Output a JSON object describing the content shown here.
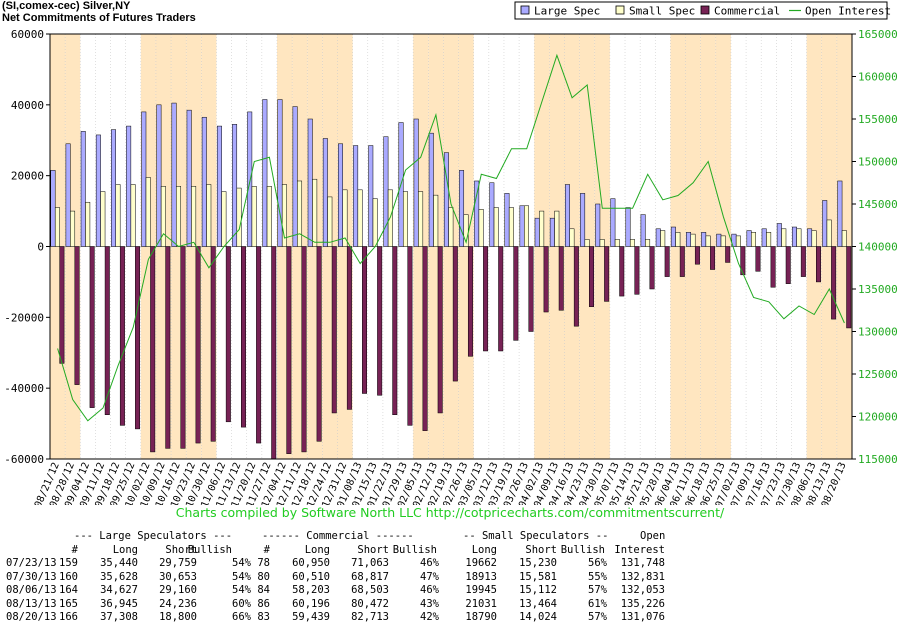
{
  "header": {
    "line1": "(SI,comex-cec) Silver,NY",
    "line2": "Net Commitments of Futures Traders"
  },
  "chart_data": {
    "type": "bar",
    "title": "",
    "colors": {
      "large_spec": "#aaaaff",
      "small_spec": "#ffffcc",
      "commercial": "#772255",
      "open_interest": "#22aa22",
      "band": "#ffe6c0"
    },
    "left_axis": {
      "min": -60000,
      "max": 60000,
      "ticks": [
        "60000",
        "40000",
        "20000",
        "0",
        "-20000",
        "-40000",
        "-60000"
      ]
    },
    "right_axis": {
      "min": 115000,
      "max": 165000,
      "ticks": [
        "165000",
        "160000",
        "155000",
        "150000",
        "145000",
        "140000",
        "135000",
        "130000",
        "125000",
        "120000",
        "115000"
      ]
    },
    "dates": [
      "08/21/12",
      "08/28/12",
      "09/04/12",
      "09/11/12",
      "09/18/12",
      "09/25/12",
      "10/02/12",
      "10/09/12",
      "10/16/12",
      "10/23/12",
      "10/30/12",
      "11/06/12",
      "11/13/12",
      "11/20/12",
      "11/27/12",
      "12/04/12",
      "12/11/12",
      "12/18/12",
      "12/24/12",
      "12/31/12",
      "01/08/13",
      "01/15/13",
      "01/22/13",
      "01/29/13",
      "02/05/13",
      "02/12/13",
      "02/19/13",
      "02/26/13",
      "03/05/13",
      "03/12/13",
      "03/19/13",
      "03/26/13",
      "04/02/13",
      "04/09/13",
      "04/16/13",
      "04/23/13",
      "04/30/13",
      "05/07/13",
      "05/14/13",
      "05/21/13",
      "05/28/13",
      "06/04/13",
      "06/11/13",
      "06/18/13",
      "06/25/13",
      "07/02/13",
      "07/09/13",
      "07/16/13",
      "07/23/13",
      "07/30/13",
      "08/06/13",
      "08/13/13",
      "08/20/13"
    ],
    "series": [
      {
        "name": "Large Spec",
        "values": [
          21500,
          29000,
          32500,
          31500,
          33000,
          34000,
          38000,
          40000,
          40500,
          38500,
          36500,
          34000,
          34500,
          38000,
          41500,
          41500,
          39500,
          36000,
          30500,
          29000,
          28500,
          28500,
          31000,
          35000,
          36000,
          32000,
          26500,
          21500,
          18500,
          18000,
          15000,
          11500,
          8000,
          8000,
          17500,
          15000,
          12000,
          13500,
          11000,
          9000,
          5000,
          5500,
          4000,
          4000,
          3500,
          3500,
          4500,
          5000,
          6500,
          5500,
          5000,
          13000,
          18500
        ]
      },
      {
        "name": "Small Spec",
        "values": [
          11000,
          10000,
          12500,
          15500,
          17500,
          17500,
          19500,
          17000,
          17000,
          17000,
          17500,
          15500,
          16500,
          17000,
          17000,
          17500,
          18500,
          19000,
          14000,
          16000,
          16000,
          13500,
          16000,
          15500,
          15500,
          14500,
          11000,
          9000,
          10500,
          11000,
          11000,
          11500,
          10000,
          10000,
          5000,
          2000,
          2000,
          2000,
          2000,
          2000,
          4500,
          4000,
          3500,
          3000,
          3000,
          3000,
          4000,
          4000,
          5000,
          5000,
          4500,
          7500,
          4500
        ]
      },
      {
        "name": "Commercial",
        "values": [
          -33000,
          -39000,
          -45500,
          -47500,
          -50500,
          -51500,
          -58000,
          -57000,
          -57000,
          -55500,
          -55000,
          -49500,
          -51000,
          -55500,
          -60000,
          -58500,
          -58000,
          -55000,
          -47000,
          -46000,
          -41500,
          -42000,
          -47500,
          -50500,
          -52000,
          -47000,
          -38000,
          -31000,
          -29500,
          -29500,
          -26500,
          -24000,
          -18500,
          -18000,
          -22500,
          -17000,
          -15500,
          -14000,
          -13500,
          -12000,
          -8500,
          -8500,
          -5000,
          -6500,
          -4500,
          -8000,
          -7000,
          -11500,
          -10500,
          -8500,
          -10000,
          -20500,
          -23000
        ]
      },
      {
        "name": "Open Interest",
        "values": [
          128000,
          122000,
          119500,
          121000,
          126000,
          130500,
          138500,
          141500,
          140000,
          140500,
          137500,
          140000,
          142000,
          150000,
          150500,
          141000,
          141500,
          140500,
          140500,
          141000,
          138000,
          140000,
          143500,
          149000,
          150500,
          155500,
          145000,
          140500,
          148500,
          148000,
          151500,
          151500,
          157000,
          162500,
          157500,
          159000,
          144500,
          144500,
          144500,
          148500,
          145500,
          146000,
          147500,
          150000,
          143500,
          138000,
          134000,
          133500,
          131500,
          133000,
          132000,
          135000,
          131000
        ]
      }
    ]
  },
  "credit": "Charts compiled by Software North LLC  http://cotpricecharts.com/commitmentscurrent/",
  "table": {
    "group_headers": [
      "--- Large Speculators ---",
      "------ Commercial ------",
      "-- Small Speculators --",
      "Open"
    ],
    "col_headers": [
      "#",
      "Long",
      "Short",
      "Bullish",
      "#",
      "Long",
      "Short",
      "Bullish",
      "Long",
      "Short",
      "Bullish",
      "Interest"
    ],
    "rows": [
      [
        "07/23/13",
        "159",
        "35,440",
        "29,759",
        "54%",
        "78",
        "60,950",
        "71,063",
        "46%",
        "19662",
        "15,230",
        "56%",
        "131,748"
      ],
      [
        "07/30/13",
        "160",
        "35,628",
        "30,653",
        "54%",
        "80",
        "60,510",
        "68,817",
        "47%",
        "18913",
        "15,581",
        "55%",
        "132,831"
      ],
      [
        "08/06/13",
        "164",
        "34,627",
        "29,160",
        "54%",
        "84",
        "58,203",
        "68,503",
        "46%",
        "19945",
        "15,112",
        "57%",
        "132,053"
      ],
      [
        "08/13/13",
        "165",
        "36,945",
        "24,236",
        "60%",
        "86",
        "60,196",
        "80,472",
        "43%",
        "21031",
        "13,464",
        "61%",
        "135,226"
      ],
      [
        "08/20/13",
        "166",
        "37,308",
        "18,800",
        "66%",
        "83",
        "59,439",
        "82,713",
        "42%",
        "18790",
        "14,024",
        "57%",
        "131,076"
      ]
    ]
  }
}
